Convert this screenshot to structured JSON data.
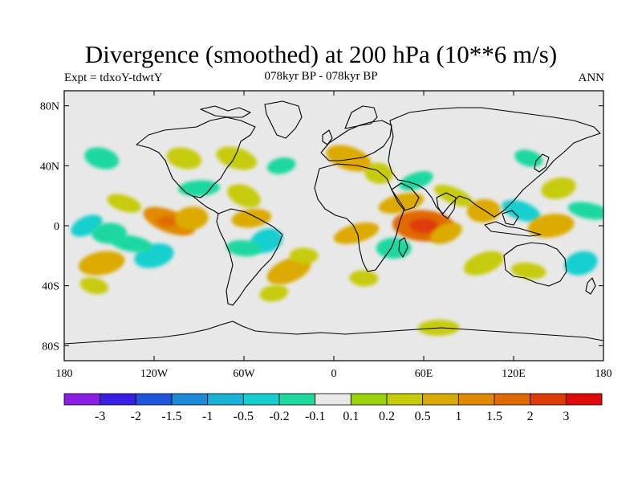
{
  "title": "Divergence (smoothed) at 200 hPa (10**6 m/s)",
  "subtitle_left": "Expt = tdxoY-tdwtY",
  "subtitle_center": "078kyr BP - 078kyr BP",
  "subtitle_right": "ANN",
  "map": {
    "projection": "equirectangular",
    "lon_range": [
      -180,
      180
    ],
    "lat_range": [
      -90,
      90
    ],
    "background_color": "#e8e8e8",
    "y_ticks": [
      {
        "lat": 80,
        "label": "80N"
      },
      {
        "lat": 40,
        "label": "40N"
      },
      {
        "lat": 0,
        "label": "0"
      },
      {
        "lat": -40,
        "label": "40S"
      },
      {
        "lat": -80,
        "label": "80S"
      }
    ],
    "x_ticks": [
      {
        "lon": -180,
        "label": "180"
      },
      {
        "lon": -120,
        "label": "120W"
      },
      {
        "lon": -60,
        "label": "60W"
      },
      {
        "lon": 0,
        "label": "0"
      },
      {
        "lon": 60,
        "label": "60E"
      },
      {
        "lon": 120,
        "label": "120E"
      },
      {
        "lon": 180,
        "label": "180"
      }
    ]
  },
  "colorbar": {
    "colors": [
      "#8b1ee6",
      "#3a1ee6",
      "#1f55dc",
      "#1b8ad8",
      "#17b3d6",
      "#15cfcf",
      "#1ed8a0",
      "#e8e8e8",
      "#99d40a",
      "#c6cc08",
      "#dcaa04",
      "#e08a04",
      "#e06a04",
      "#e03a08",
      "#e00a0a"
    ],
    "labels": [
      "-3",
      "-2",
      "-1.5",
      "-1",
      "-0.5",
      "-0.2",
      "-0.1",
      "0.1",
      "0.2",
      "0.5",
      "1",
      "1.5",
      "2",
      "3"
    ]
  },
  "chart_data": {
    "type": "heatmap",
    "title": "Divergence (smoothed) at 200 hPa (10**6 m/s)",
    "levels": [
      -3,
      -2,
      -1.5,
      -1,
      -0.5,
      -0.2,
      -0.1,
      0.1,
      0.2,
      0.5,
      1,
      1.5,
      2,
      3
    ],
    "blobs": [
      {
        "lon": -165,
        "lat": 0,
        "value": -0.5
      },
      {
        "lon": -150,
        "lat": -5,
        "value": -0.2
      },
      {
        "lon": -110,
        "lat": 3,
        "value": 1
      },
      {
        "lon": -95,
        "lat": 5,
        "value": 0.5
      },
      {
        "lon": -140,
        "lat": 15,
        "value": 0.2
      },
      {
        "lon": -155,
        "lat": -25,
        "value": 0.5
      },
      {
        "lon": -160,
        "lat": -40,
        "value": 0.2
      },
      {
        "lon": -120,
        "lat": -20,
        "value": -0.5
      },
      {
        "lon": -135,
        "lat": -12,
        "value": -0.2
      },
      {
        "lon": -45,
        "lat": -10,
        "value": -0.5
      },
      {
        "lon": -60,
        "lat": -15,
        "value": -0.2
      },
      {
        "lon": -30,
        "lat": -30,
        "value": 0.5
      },
      {
        "lon": -20,
        "lat": -20,
        "value": 0.2
      },
      {
        "lon": -60,
        "lat": 20,
        "value": 0.2
      },
      {
        "lon": -90,
        "lat": 25,
        "value": -0.2
      },
      {
        "lon": -70,
        "lat": 35,
        "value": -0.1
      },
      {
        "lon": -55,
        "lat": 5,
        "value": 0.5
      },
      {
        "lon": -65,
        "lat": 45,
        "value": 0.2
      },
      {
        "lon": -35,
        "lat": 40,
        "value": -0.2
      },
      {
        "lon": -100,
        "lat": 45,
        "value": 0.2
      },
      {
        "lon": 15,
        "lat": -5,
        "value": 0.5
      },
      {
        "lon": 30,
        "lat": 35,
        "value": 0.2
      },
      {
        "lon": 55,
        "lat": 30,
        "value": -0.2
      },
      {
        "lon": 60,
        "lat": 0,
        "value": 1.5
      },
      {
        "lon": 75,
        "lat": -5,
        "value": 0.5
      },
      {
        "lon": 40,
        "lat": -15,
        "value": -0.2
      },
      {
        "lon": 80,
        "lat": 20,
        "value": 0.2
      },
      {
        "lon": 100,
        "lat": 10,
        "value": 0.5
      },
      {
        "lon": 125,
        "lat": 10,
        "value": -0.5
      },
      {
        "lon": 145,
        "lat": 0,
        "value": 0.5
      },
      {
        "lon": 130,
        "lat": 45,
        "value": -0.2
      },
      {
        "lon": 150,
        "lat": 25,
        "value": 0.2
      },
      {
        "lon": 170,
        "lat": 10,
        "value": -0.2
      },
      {
        "lon": 165,
        "lat": -25,
        "value": -0.5
      },
      {
        "lon": 130,
        "lat": -30,
        "value": 0.2
      },
      {
        "lon": 100,
        "lat": -25,
        "value": 0.2
      },
      {
        "lon": 20,
        "lat": -35,
        "value": 0.2
      },
      {
        "lon": 20,
        "lat": -70,
        "value": -0.1
      },
      {
        "lon": 70,
        "lat": -68,
        "value": 0.2
      },
      {
        "lon": 95,
        "lat": -72,
        "value": -0.1
      },
      {
        "lon": -170,
        "lat": 35,
        "value": -0.1
      },
      {
        "lon": 10,
        "lat": 45,
        "value": 0.5
      },
      {
        "lon": -40,
        "lat": -45,
        "value": 0.2
      },
      {
        "lon": -155,
        "lat": 45,
        "value": -0.2
      },
      {
        "lon": 45,
        "lat": 15,
        "value": 0.5
      }
    ]
  }
}
